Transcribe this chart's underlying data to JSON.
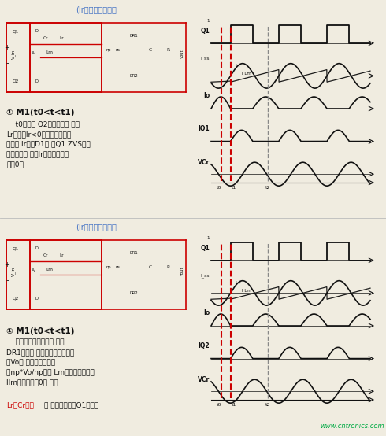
{
  "bg": "#f0ece0",
  "blue": "#4472C4",
  "red": "#CC0000",
  "black": "#111111",
  "green": "#00AA44",
  "gray": "#888888",
  "top_title": "(Ir从左向右为正）",
  "bot_title": "(Ir从左向右为正）",
  "top_label": "① M1(t0<t<t1)",
  "top_text": "    t0时刻， Q2恰好关断， 此时\nLr的电流Ir<0（从左向右记为\n正）。 Ir流经D1， 为Q1 ZVS开通\n创造条件， 并且Ir以正弦规律减\n小到0。",
  "bot_label": "① M1(t0<t<t1)",
  "bot_text1": "    由电磁感应定律知， 副边\nDR1导通， 副边电压即为输出电\n压Vo， 则原边电压即为\n（np*Vo/np）， Lm上电压为定値，\nIlm线性上升到0， 此时",
  "bot_text_red": "Lr与Cr谐振",
  "bot_text2": "。 在这段时间里Q1开通。",
  "watermark": "www.cntronics.com"
}
